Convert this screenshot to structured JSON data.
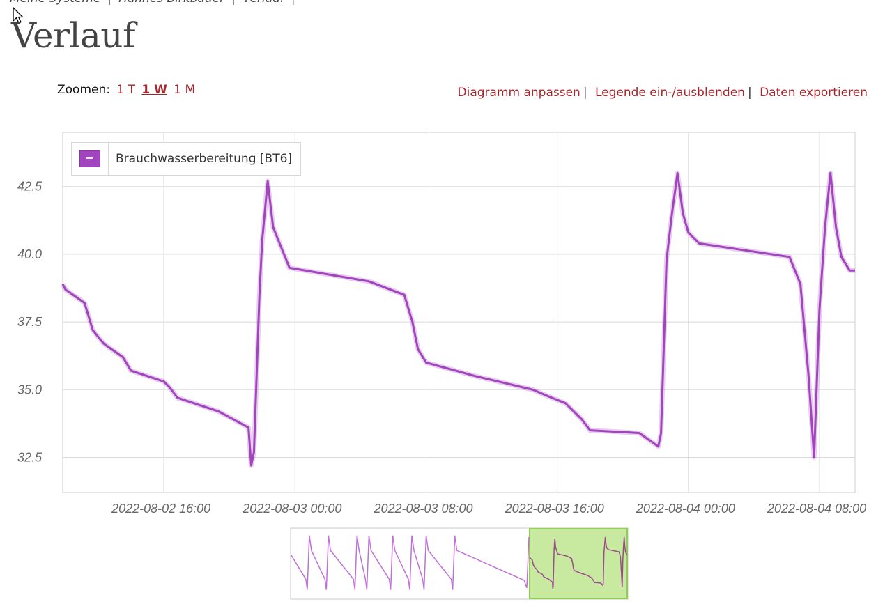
{
  "breadcrumb": [
    "Meine Systeme",
    "Hannes Birkbauer",
    "Verlauf"
  ],
  "page_title": "Verlauf",
  "zoom": {
    "label": "Zoomen:",
    "options": [
      "1 T",
      "1 W",
      "1 M"
    ],
    "selected": "1 W"
  },
  "actions": {
    "customize": "Diagramm anpassen",
    "legend_toggle": "Legende ein-/ausblenden",
    "export": "Daten exportieren"
  },
  "legend": {
    "toggle_symbol": "−"
  },
  "colors": {
    "series": "#a144bd",
    "link": "#a5262b",
    "navigator_window": "#c8eaa0"
  },
  "chart_data": {
    "type": "line",
    "series": [
      {
        "name": "Brauchwasserbereitung [BT6]",
        "color": "#a144bd",
        "points": [
          [
            "2022-08-02 09:50",
            38.9
          ],
          [
            "2022-08-02 10:00",
            38.7
          ],
          [
            "2022-08-02 11:10",
            38.2
          ],
          [
            "2022-08-02 11:40",
            37.2
          ],
          [
            "2022-08-02 12:20",
            36.7
          ],
          [
            "2022-08-02 13:30",
            36.2
          ],
          [
            "2022-08-02 14:00",
            35.7
          ],
          [
            "2022-08-02 16:00",
            35.3
          ],
          [
            "2022-08-02 16:20",
            35.1
          ],
          [
            "2022-08-02 16:50",
            34.7
          ],
          [
            "2022-08-02 19:20",
            34.2
          ],
          [
            "2022-08-02 21:10",
            33.6
          ],
          [
            "2022-08-02 21:20",
            32.2
          ],
          [
            "2022-08-02 21:30",
            32.7
          ],
          [
            "2022-08-02 21:50",
            38.5
          ],
          [
            "2022-08-02 22:00",
            40.5
          ],
          [
            "2022-08-02 22:20",
            42.7
          ],
          [
            "2022-08-02 22:40",
            41.0
          ],
          [
            "2022-08-02 23:00",
            40.5
          ],
          [
            "2022-08-02 23:40",
            39.5
          ],
          [
            "2022-08-03 04:30",
            39.0
          ],
          [
            "2022-08-03 06:40",
            38.5
          ],
          [
            "2022-08-03 07:10",
            37.5
          ],
          [
            "2022-08-03 07:30",
            36.5
          ],
          [
            "2022-08-03 08:00",
            36.0
          ],
          [
            "2022-08-03 11:00",
            35.5
          ],
          [
            "2022-08-03 14:30",
            35.0
          ],
          [
            "2022-08-03 15:40",
            34.7
          ],
          [
            "2022-08-03 16:30",
            34.5
          ],
          [
            "2022-08-03 17:30",
            33.9
          ],
          [
            "2022-08-03 18:00",
            33.5
          ],
          [
            "2022-08-03 21:00",
            33.4
          ],
          [
            "2022-08-03 22:10",
            32.9
          ],
          [
            "2022-08-03 22:20",
            33.4
          ],
          [
            "2022-08-03 22:40",
            39.8
          ],
          [
            "2022-08-03 23:00",
            41.5
          ],
          [
            "2022-08-03 23:20",
            43.0
          ],
          [
            "2022-08-03 23:40",
            41.5
          ],
          [
            "2022-08-04 00:00",
            40.8
          ],
          [
            "2022-08-04 00:40",
            40.4
          ],
          [
            "2022-08-04 06:10",
            39.9
          ],
          [
            "2022-08-04 06:50",
            38.9
          ],
          [
            "2022-08-04 07:20",
            35.5
          ],
          [
            "2022-08-04 07:40",
            32.5
          ],
          [
            "2022-08-04 08:00",
            38.0
          ],
          [
            "2022-08-04 08:20",
            41.0
          ],
          [
            "2022-08-04 08:40",
            43.0
          ],
          [
            "2022-08-04 09:00",
            41.0
          ],
          [
            "2022-08-04 09:20",
            39.9
          ],
          [
            "2022-08-04 09:50",
            39.4
          ],
          [
            "2022-08-04 10:10",
            39.4
          ]
        ]
      }
    ],
    "x_ticks": [
      "2022-08-02 16:00",
      "2022-08-03 00:00",
      "2022-08-03 08:00",
      "2022-08-03 16:00",
      "2022-08-04 00:00",
      "2022-08-04 08:00"
    ],
    "y_ticks": [
      "32.5",
      "35.0",
      "37.5",
      "40.0",
      "42.5"
    ],
    "x_range": [
      "2022-08-02 09:50",
      "2022-08-04 10:10"
    ],
    "ylim": [
      31.2,
      44.5
    ],
    "grid": true,
    "legend_position": "top-left"
  },
  "navigator": {
    "selected_range": [
      "2022-08-02 09:50",
      "2022-08-04 10:10"
    ]
  }
}
